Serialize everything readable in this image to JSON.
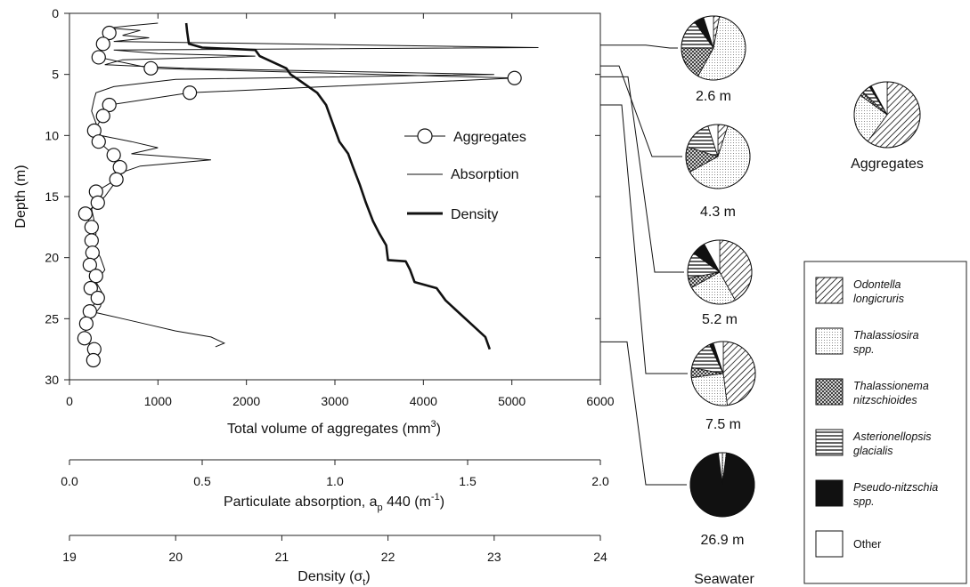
{
  "chart_data": [
    {
      "type": "line",
      "y_axis": {
        "label": "Depth (m)",
        "range": [
          30,
          0
        ],
        "ticks": [
          0,
          5,
          10,
          15,
          20,
          25,
          30
        ]
      },
      "x_axes": [
        {
          "id": "volume",
          "label": "Total volume of aggregates (mm",
          "label_sup": "3",
          "label_tail": ")",
          "range": [
            0,
            6000
          ],
          "ticks": [
            0,
            1000,
            2000,
            3000,
            4000,
            5000,
            6000
          ]
        },
        {
          "id": "absorption",
          "label": "Particulate absorption, a",
          "label_sub": "p",
          "label_tail": " 440 (m",
          "label_sup": "-1",
          "label_tail2": ")",
          "range": [
            0,
            2
          ],
          "ticks": [
            "0.0",
            "0.5",
            "1.0",
            "1.5",
            "2.0"
          ]
        },
        {
          "id": "density",
          "label": "Density (σ",
          "label_sub": "t",
          "label_tail": ")",
          "range": [
            19,
            24
          ],
          "ticks": [
            19,
            20,
            21,
            22,
            23,
            24
          ]
        }
      ],
      "legend": [
        {
          "name": "Aggregates",
          "style": "line-circle"
        },
        {
          "name": "Absorption",
          "style": "thin-line"
        },
        {
          "name": "Density",
          "style": "thick-line"
        }
      ],
      "series": [
        {
          "name": "Aggregates",
          "x_axis": "volume",
          "points": [
            {
              "x": 450,
              "y": 1.6
            },
            {
              "x": 380,
              "y": 2.5
            },
            {
              "x": 330,
              "y": 3.6
            },
            {
              "x": 920,
              "y": 4.5
            },
            {
              "x": 5030,
              "y": 5.3
            },
            {
              "x": 1360,
              "y": 6.5
            },
            {
              "x": 450,
              "y": 7.5
            },
            {
              "x": 380,
              "y": 8.4
            },
            {
              "x": 280,
              "y": 9.6
            },
            {
              "x": 330,
              "y": 10.5
            },
            {
              "x": 500,
              "y": 11.6
            },
            {
              "x": 570,
              "y": 12.6
            },
            {
              "x": 530,
              "y": 13.6
            },
            {
              "x": 300,
              "y": 14.6
            },
            {
              "x": 320,
              "y": 15.5
            },
            {
              "x": 180,
              "y": 16.4
            },
            {
              "x": 250,
              "y": 17.5
            },
            {
              "x": 250,
              "y": 18.6
            },
            {
              "x": 260,
              "y": 19.6
            },
            {
              "x": 230,
              "y": 20.6
            },
            {
              "x": 300,
              "y": 21.5
            },
            {
              "x": 240,
              "y": 22.5
            },
            {
              "x": 320,
              "y": 23.3
            },
            {
              "x": 230,
              "y": 24.4
            },
            {
              "x": 190,
              "y": 25.4
            },
            {
              "x": 170,
              "y": 26.6
            },
            {
              "x": 280,
              "y": 27.5
            },
            {
              "x": 270,
              "y": 28.4
            }
          ]
        },
        {
          "name": "Absorption",
          "x_axis": "volume",
          "points": [
            {
              "x": 1000,
              "y": 0.8
            },
            {
              "x": 700,
              "y": 1.0
            },
            {
              "x": 450,
              "y": 1.2
            },
            {
              "x": 800,
              "y": 1.4
            },
            {
              "x": 600,
              "y": 1.8
            },
            {
              "x": 900,
              "y": 2.0
            },
            {
              "x": 500,
              "y": 2.3
            },
            {
              "x": 5300,
              "y": 2.8
            },
            {
              "x": 500,
              "y": 3.0
            },
            {
              "x": 1000,
              "y": 3.3
            },
            {
              "x": 2100,
              "y": 3.5
            },
            {
              "x": 600,
              "y": 3.8
            },
            {
              "x": 400,
              "y": 4.2
            },
            {
              "x": 1300,
              "y": 4.5
            },
            {
              "x": 4800,
              "y": 5.0
            },
            {
              "x": 1200,
              "y": 5.4
            },
            {
              "x": 500,
              "y": 6.0
            },
            {
              "x": 300,
              "y": 6.5
            },
            {
              "x": 280,
              "y": 7.0
            },
            {
              "x": 250,
              "y": 8.0
            },
            {
              "x": 300,
              "y": 9.0
            },
            {
              "x": 350,
              "y": 10.0
            },
            {
              "x": 700,
              "y": 10.5
            },
            {
              "x": 1000,
              "y": 11.0
            },
            {
              "x": 700,
              "y": 11.5
            },
            {
              "x": 1600,
              "y": 12.0
            },
            {
              "x": 800,
              "y": 12.5
            },
            {
              "x": 600,
              "y": 13.0
            },
            {
              "x": 500,
              "y": 14.0
            },
            {
              "x": 400,
              "y": 15.0
            },
            {
              "x": 250,
              "y": 16.0
            },
            {
              "x": 280,
              "y": 17.0
            },
            {
              "x": 300,
              "y": 18.0
            },
            {
              "x": 280,
              "y": 19.0
            },
            {
              "x": 350,
              "y": 20.0
            },
            {
              "x": 400,
              "y": 21.0
            },
            {
              "x": 300,
              "y": 22.0
            },
            {
              "x": 380,
              "y": 23.0
            },
            {
              "x": 350,
              "y": 24.0
            },
            {
              "x": 300,
              "y": 24.5
            },
            {
              "x": 600,
              "y": 25.0
            },
            {
              "x": 900,
              "y": 25.5
            },
            {
              "x": 1200,
              "y": 26.0
            },
            {
              "x": 1600,
              "y": 26.5
            },
            {
              "x": 1750,
              "y": 27.0
            },
            {
              "x": 1650,
              "y": 27.3
            }
          ]
        },
        {
          "name": "Density",
          "x_axis": "volume",
          "points": [
            {
              "x": 1320,
              "y": 0.8
            },
            {
              "x": 1330,
              "y": 1.5
            },
            {
              "x": 1350,
              "y": 2.5
            },
            {
              "x": 1500,
              "y": 2.8
            },
            {
              "x": 2100,
              "y": 3.0
            },
            {
              "x": 2150,
              "y": 3.5
            },
            {
              "x": 2300,
              "y": 4.0
            },
            {
              "x": 2450,
              "y": 4.5
            },
            {
              "x": 2500,
              "y": 5.0
            },
            {
              "x": 2600,
              "y": 5.5
            },
            {
              "x": 2700,
              "y": 6.0
            },
            {
              "x": 2800,
              "y": 6.5
            },
            {
              "x": 2900,
              "y": 7.5
            },
            {
              "x": 2950,
              "y": 8.5
            },
            {
              "x": 3000,
              "y": 9.5
            },
            {
              "x": 3050,
              "y": 10.5
            },
            {
              "x": 3150,
              "y": 11.5
            },
            {
              "x": 3200,
              "y": 12.5
            },
            {
              "x": 3280,
              "y": 14.0
            },
            {
              "x": 3350,
              "y": 15.5
            },
            {
              "x": 3430,
              "y": 17.0
            },
            {
              "x": 3500,
              "y": 18.0
            },
            {
              "x": 3580,
              "y": 19.0
            },
            {
              "x": 3600,
              "y": 20.2
            },
            {
              "x": 3800,
              "y": 20.3
            },
            {
              "x": 3850,
              "y": 21.0
            },
            {
              "x": 3900,
              "y": 22.0
            },
            {
              "x": 4150,
              "y": 22.5
            },
            {
              "x": 4250,
              "y": 23.5
            },
            {
              "x": 4400,
              "y": 24.5
            },
            {
              "x": 4550,
              "y": 25.5
            },
            {
              "x": 4700,
              "y": 26.5
            },
            {
              "x": 4750,
              "y": 27.5
            }
          ]
        }
      ]
    },
    {
      "type": "pie",
      "group_label": "Seawater",
      "pies": [
        {
          "label": "2.6 m",
          "depth": 2.6,
          "values": {
            "Odontella longicruris": 3,
            "Thalassiosira spp.": 55,
            "Thalassionema nitzschioides": 17,
            "Asterionellopsis glacialis": 15,
            "Pseudo-nitzschia spp.": 5,
            "Other": 5
          }
        },
        {
          "label": "4.3 m",
          "depth": 4.3,
          "values": {
            "Odontella longicruris": 5,
            "Thalassiosira spp.": 62,
            "Thalassionema nitzschioides": 13,
            "Asterionellopsis glacialis": 15,
            "Pseudo-nitzschia spp.": 0,
            "Other": 5
          }
        },
        {
          "label": "5.2 m",
          "depth": 5.2,
          "values": {
            "Odontella longicruris": 42,
            "Thalassiosira spp.": 25,
            "Thalassionema nitzschioides": 5,
            "Asterionellopsis glacialis": 13,
            "Pseudo-nitzschia spp.": 7,
            "Other": 8
          }
        },
        {
          "label": "7.5 m",
          "depth": 7.5,
          "values": {
            "Odontella longicruris": 48,
            "Thalassiosira spp.": 25,
            "Thalassionema nitzschioides": 5,
            "Asterionellopsis glacialis": 15,
            "Pseudo-nitzschia spp.": 2,
            "Other": 5
          }
        },
        {
          "label": "26.9 m",
          "depth": 26.9,
          "values": {
            "Odontella longicruris": 0,
            "Thalassiosira spp.": 2,
            "Thalassionema nitzschioides": 0,
            "Asterionellopsis glacialis": 0,
            "Pseudo-nitzschia spp.": 96,
            "Other": 2
          }
        }
      ]
    },
    {
      "type": "pie",
      "label": "Aggregates",
      "values": {
        "Odontella longicruris": 60,
        "Thalassiosira spp.": 25,
        "Thalassionema nitzschioides": 2,
        "Asterionellopsis glacialis": 4,
        "Pseudo-nitzschia spp.": 1,
        "Other": 8
      }
    }
  ],
  "pie_legend": [
    {
      "name": "Odontella longicruris",
      "line1": "Odontella",
      "line2": "longicruris",
      "italic": true,
      "pattern": "diagonal"
    },
    {
      "name": "Thalassiosira spp.",
      "line1": "Thalassiosira",
      "line2": "spp.",
      "italic": true,
      "pattern": "dots"
    },
    {
      "name": "Thalassionema nitzschioides",
      "line1": "Thalassionema",
      "line2": "nitzschioides",
      "italic": true,
      "pattern": "crosshatch"
    },
    {
      "name": "Asterionellopsis glacialis",
      "line1": "Asterionellopsis",
      "line2": "glacialis",
      "italic": true,
      "pattern": "horizontal"
    },
    {
      "name": "Pseudo-nitzschia spp.",
      "line1": "Pseudo-nitzschia",
      "line2": "spp.",
      "italic": true,
      "pattern": "solid"
    },
    {
      "name": "Other",
      "line1": "Other",
      "line2": "",
      "italic": false,
      "pattern": "none"
    }
  ]
}
